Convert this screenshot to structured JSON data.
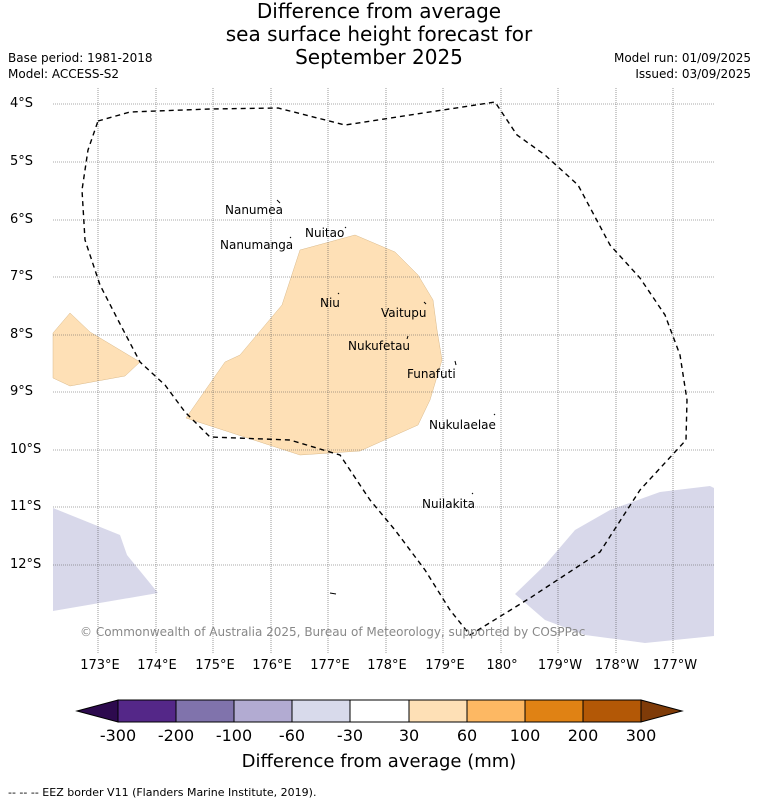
{
  "title": {
    "line1": "Difference from average",
    "line2": "sea surface height forecast for",
    "line3": "September 2025"
  },
  "meta": {
    "base_period": "Base period: 1981-2018",
    "model": "Model: ACCESS-S2",
    "model_run": "Model run: 01/09/2025",
    "issued": "Issued: 03/09/2025"
  },
  "map": {
    "lat_labels": [
      "4°S",
      "5°S",
      "6°S",
      "7°S",
      "8°S",
      "9°S",
      "10°S",
      "11°S",
      "12°S"
    ],
    "lon_labels": [
      "173°E",
      "174°E",
      "175°E",
      "176°E",
      "177°E",
      "178°E",
      "179°E",
      "180°",
      "179°W",
      "178°W",
      "177°W"
    ],
    "islands": [
      "Nanumea",
      "Nuitao",
      "Nanumanga",
      "Niu",
      "Vaitupu",
      "Nukufetau",
      "Funafuti",
      "Nukulaelae",
      "Nuilakita"
    ],
    "copyright": "© Commonwealth of Australia 2025, Bureau of Meteorology, supported by COSPPac",
    "shading_colors": {
      "light_orange": "#fee0b6",
      "light_purple": "#d8d8ea"
    }
  },
  "colorbar": {
    "ticks": [
      "-300",
      "-200",
      "-100",
      "-60",
      "-30",
      "30",
      "60",
      "100",
      "200",
      "300"
    ],
    "colors": [
      "#2d0a4e",
      "#542788",
      "#8073ac",
      "#b2abd2",
      "#d8daeb",
      "#ffffff",
      "#fee0b6",
      "#fdb863",
      "#e08214",
      "#b35806",
      "#7f3b08"
    ],
    "title": "Difference from average (mm)"
  },
  "footnote": "--  --  -- EEZ border V11 (Flanders Marine Institute, 2019)."
}
